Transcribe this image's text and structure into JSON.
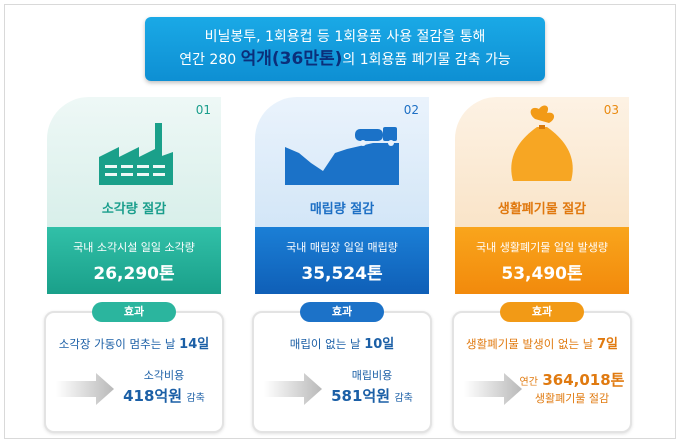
{
  "banner": {
    "line1": "비닐봉투, 1회용컵 등 1회용품 사용 절감을 통해",
    "line2_prefix": "연간 280",
    "line2_big": "억개(36만톤)",
    "line2_suffix": "의 1회용품 폐기물 감축 가능"
  },
  "cards": [
    {
      "number": "01",
      "title": "소각량 절감",
      "stat_label": "국내 소각시설 일일 소각량",
      "stat_value": "26,290톤",
      "icon": "factory-icon",
      "color": "#1aa08a"
    },
    {
      "number": "02",
      "title": "매립량 절감",
      "stat_label": "국내 매립장 일일 매립량",
      "stat_value": "35,524톤",
      "icon": "landfill-truck-icon",
      "color": "#0f5fb7"
    },
    {
      "number": "03",
      "title": "생활폐기물 절감",
      "stat_label": "국내 생활폐기물 일일 발생량",
      "stat_value": "53,490톤",
      "icon": "garbage-bag-icon",
      "color": "#f28a0c"
    }
  ],
  "effects": [
    {
      "tag": "효과",
      "line1_text": "소각장 가동이 멈추는 날",
      "line1_bold": "14일",
      "result_label": "소각비용",
      "result_value": "418억원",
      "result_suffix": "감축"
    },
    {
      "tag": "효과",
      "line1_text": "매립이 없는 날",
      "line1_bold": "10일",
      "result_label": "매립비용",
      "result_value": "581억원",
      "result_suffix": "감축"
    },
    {
      "tag": "효과",
      "line1_text": "생활폐기물 발생이 없는 날",
      "line1_bold": "7일",
      "result_prefix": "연간",
      "result_value": "364,018톤",
      "result_label": "생활폐기물 절감"
    }
  ]
}
